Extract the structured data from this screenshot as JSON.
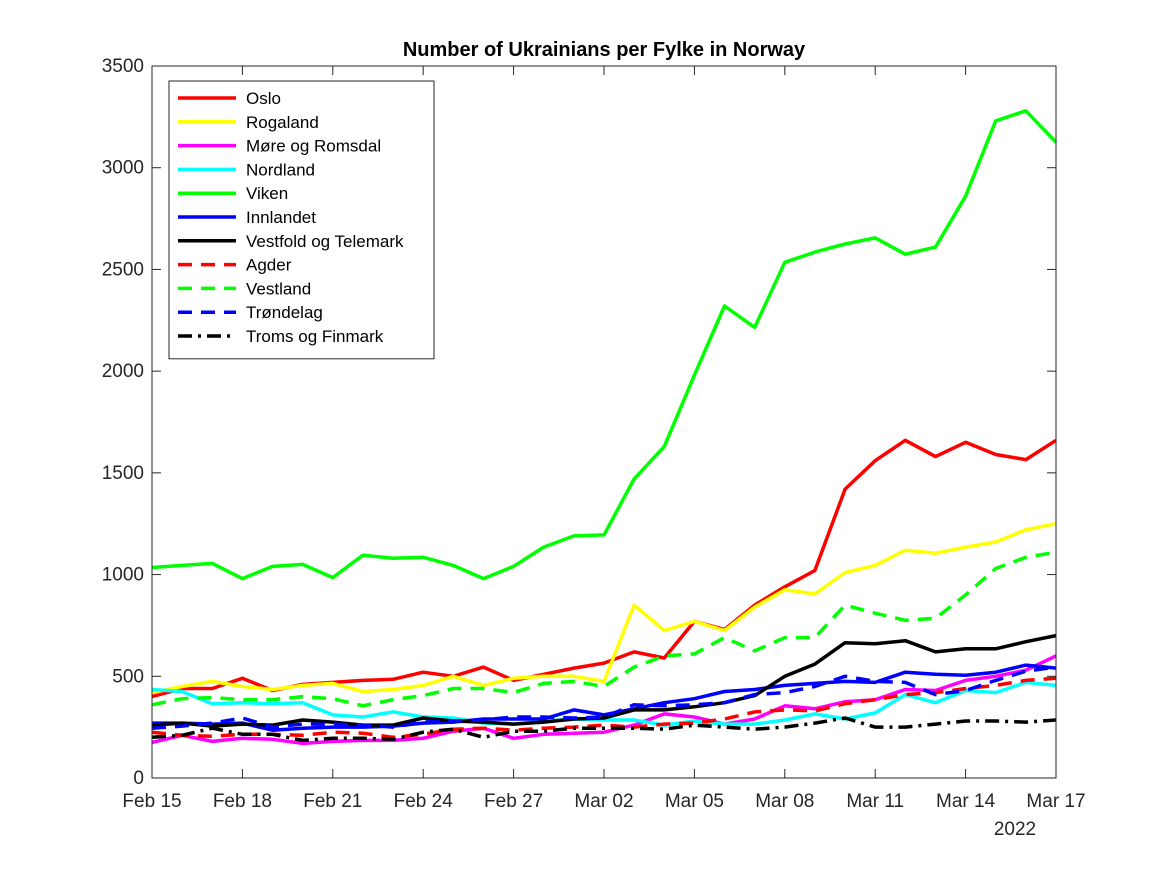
{
  "chart_data": {
    "type": "line",
    "title": "Number of Ukrainians per Fylke in Norway",
    "xlabel": "",
    "ylabel": "",
    "x_start": "Feb 15",
    "x_end": "Mar 17",
    "xticks": [
      "Feb 15",
      "Feb 18",
      "Feb 21",
      "Feb 24",
      "Feb 27",
      "Mar 02",
      "Mar 05",
      "Mar 08",
      "Mar 11",
      "Mar 14",
      "Mar 17"
    ],
    "x_year_label": "2022",
    "ylim": [
      0,
      3500
    ],
    "yticks": [
      0,
      500,
      1000,
      1500,
      2000,
      2500,
      3000,
      3500
    ],
    "grid": false,
    "legend_position": "top-left",
    "series": [
      {
        "name": "Oslo",
        "color": "#ff0000",
        "style": "solid",
        "values": [
          400,
          440,
          440,
          490,
          430,
          460,
          470,
          480,
          485,
          520,
          500,
          545,
          480,
          510,
          540,
          565,
          620,
          590,
          770,
          730,
          850,
          940,
          1020,
          1420,
          1560,
          1660,
          1580,
          1650,
          1590,
          1565,
          1660
        ]
      },
      {
        "name": "Rogaland",
        "color": "#ffff00",
        "style": "solid",
        "values": [
          420,
          450,
          475,
          450,
          435,
          455,
          465,
          425,
          435,
          455,
          500,
          455,
          490,
          500,
          500,
          475,
          850,
          725,
          770,
          725,
          840,
          925,
          905,
          1010,
          1045,
          1120,
          1105,
          1135,
          1160,
          1220,
          1250
        ]
      },
      {
        "name": "Møre og Romsdal",
        "color": "#ff00ff",
        "style": "solid",
        "values": [
          175,
          210,
          180,
          195,
          190,
          170,
          180,
          185,
          185,
          195,
          230,
          245,
          195,
          215,
          220,
          225,
          260,
          315,
          300,
          265,
          290,
          355,
          340,
          375,
          385,
          435,
          430,
          480,
          500,
          530,
          600
        ]
      },
      {
        "name": "Nordland",
        "color": "#00ffff",
        "style": "solid",
        "values": [
          435,
          425,
          365,
          370,
          365,
          370,
          310,
          300,
          325,
          300,
          295,
          270,
          265,
          280,
          290,
          285,
          285,
          260,
          280,
          265,
          265,
          285,
          315,
          290,
          320,
          410,
          370,
          430,
          420,
          470,
          455
        ]
      },
      {
        "name": "Viken",
        "color": "#00ff00",
        "style": "solid",
        "values": [
          1035,
          1045,
          1055,
          980,
          1040,
          1050,
          985,
          1095,
          1080,
          1085,
          1045,
          980,
          1040,
          1135,
          1190,
          1195,
          1470,
          1630,
          1980,
          2320,
          2215,
          2535,
          2585,
          2625,
          2655,
          2575,
          2610,
          2860,
          3230,
          3280,
          3125
        ]
      },
      {
        "name": "Innlandet",
        "color": "#0000ff",
        "style": "solid",
        "values": [
          270,
          270,
          265,
          270,
          235,
          245,
          250,
          250,
          255,
          270,
          275,
          290,
          290,
          290,
          335,
          310,
          340,
          370,
          390,
          425,
          435,
          455,
          465,
          475,
          470,
          520,
          510,
          505,
          520,
          555,
          540
        ]
      },
      {
        "name": "Vestfold og Telemark",
        "color": "#000000",
        "style": "solid",
        "values": [
          260,
          270,
          255,
          265,
          260,
          285,
          275,
          260,
          260,
          295,
          280,
          275,
          265,
          275,
          290,
          295,
          335,
          335,
          350,
          370,
          405,
          500,
          560,
          665,
          660,
          675,
          620,
          635,
          635,
          670,
          700
        ]
      },
      {
        "name": "Agder",
        "color": "#ff0000",
        "style": "dashed",
        "values": [
          225,
          210,
          205,
          215,
          215,
          210,
          225,
          220,
          200,
          215,
          240,
          245,
          235,
          245,
          250,
          260,
          250,
          265,
          270,
          290,
          325,
          335,
          330,
          365,
          385,
          410,
          420,
          440,
          455,
          480,
          490
        ]
      },
      {
        "name": "Vestland",
        "color": "#00ff00",
        "style": "dashed",
        "values": [
          360,
          390,
          395,
          385,
          385,
          400,
          390,
          355,
          385,
          405,
          440,
          440,
          420,
          465,
          475,
          450,
          545,
          600,
          610,
          690,
          625,
          690,
          690,
          850,
          810,
          775,
          785,
          900,
          1030,
          1085,
          1110
        ]
      },
      {
        "name": "Trøndelag",
        "color": "#0000ff",
        "style": "dashed",
        "values": [
          245,
          255,
          270,
          295,
          250,
          265,
          265,
          260,
          250,
          275,
          280,
          285,
          300,
          300,
          295,
          300,
          360,
          355,
          360,
          370,
          410,
          420,
          450,
          500,
          475,
          470,
          410,
          430,
          480,
          525,
          545
        ]
      },
      {
        "name": "Troms og Finmark",
        "color": "#000000",
        "style": "dashdot",
        "values": [
          200,
          210,
          245,
          215,
          215,
          185,
          195,
          195,
          190,
          225,
          240,
          200,
          230,
          230,
          245,
          245,
          245,
          240,
          260,
          250,
          240,
          250,
          270,
          295,
          250,
          250,
          265,
          280,
          280,
          275,
          285
        ]
      }
    ]
  }
}
